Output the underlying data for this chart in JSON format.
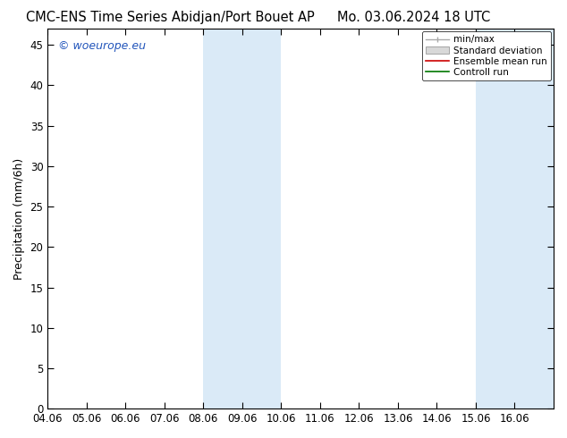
{
  "title_left": "CMC-ENS Time Series Abidjan/Port Bouet AP",
  "title_right": "Mo. 03.06.2024 18 UTC",
  "ylabel": "Precipitation (mm/6h)",
  "ylim": [
    0,
    47
  ],
  "yticks": [
    0,
    5,
    10,
    15,
    20,
    25,
    30,
    35,
    40,
    45
  ],
  "x_start": 0,
  "x_end": 13,
  "xtick_labels": [
    "04.06",
    "05.06",
    "06.06",
    "07.06",
    "08.06",
    "09.06",
    "10.06",
    "11.06",
    "12.06",
    "13.06",
    "14.06",
    "15.06",
    "16.06"
  ],
  "xtick_positions": [
    0,
    1,
    2,
    3,
    4,
    5,
    6,
    7,
    8,
    9,
    10,
    11,
    12
  ],
  "shaded_bands": [
    {
      "xmin": 4,
      "xmax": 6,
      "color": "#daeaf7"
    },
    {
      "xmin": 11,
      "xmax": 13,
      "color": "#daeaf7"
    }
  ],
  "legend_entries": [
    {
      "label": "min/max",
      "color": "#aaaaaa",
      "style": "minmax"
    },
    {
      "label": "Standard deviation",
      "color": "#cccccc",
      "style": "box"
    },
    {
      "label": "Ensemble mean run",
      "color": "#cc0000",
      "style": "line"
    },
    {
      "label": "Controll run",
      "color": "#007700",
      "style": "line"
    }
  ],
  "watermark": "© woeurope.eu",
  "watermark_color": "#2255bb",
  "background_color": "#ffffff",
  "title_fontsize": 10.5,
  "tick_fontsize": 8.5,
  "ylabel_fontsize": 9,
  "legend_fontsize": 7.5
}
